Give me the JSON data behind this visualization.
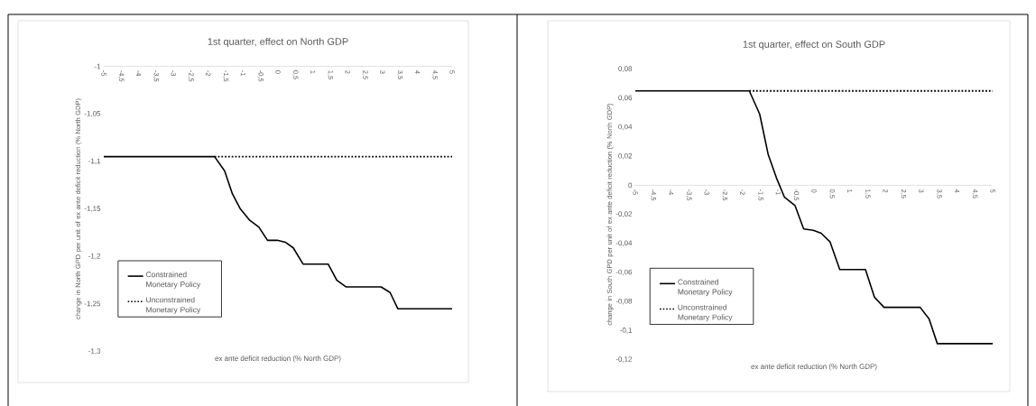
{
  "chart_data": [
    {
      "type": "line",
      "title": "1st quarter, effect on North GDP",
      "xlabel": "ex ante deficit reduction  (% North  GDP)",
      "ylabel": "change in North GPD per unit of ex ante deficit reduction (% North GDP)",
      "legend": "bottom left",
      "xlim": [
        -5,
        5
      ],
      "xticks": [
        -5,
        {
          "value": -4.5,
          "label": "-4,5"
        },
        -4,
        {
          "value": -3.5,
          "label": "-3,5"
        },
        -3,
        {
          "value": -2.5,
          "label": "-2,5"
        },
        -2,
        {
          "value": -1.5,
          "label": "-1,5"
        },
        -1,
        {
          "value": -0.5,
          "label": "-0,5"
        },
        0,
        {
          "value": 0.5,
          "label": "0,5"
        },
        1,
        {
          "value": 1.5,
          "label": "1,5"
        },
        2,
        {
          "value": 2.5,
          "label": "2,5"
        },
        3,
        {
          "value": 3.5,
          "label": "3,5"
        },
        4,
        {
          "value": 4.5,
          "label": "4,5"
        },
        5
      ],
      "ylim": [
        -1.3,
        -1
      ],
      "yticks": [
        -1,
        {
          "value": -1.05,
          "label": "-1,05"
        },
        {
          "value": -1.1,
          "label": "-1,1"
        },
        {
          "value": -1.15,
          "label": "-1,15"
        },
        {
          "value": -1.2,
          "label": "-1,2"
        },
        {
          "value": -1.25,
          "label": "-1,25"
        },
        {
          "value": -1.3,
          "label": "-1,3"
        }
      ],
      "series": [
        {
          "name": "Constrained Monetary Policy",
          "color": "#000000",
          "line_style": "solid",
          "x": [
            -5,
            -1.82,
            -1.53,
            -1.31,
            -1.08,
            -0.81,
            -0.55,
            -0.3,
            -0.02,
            0.21,
            0.44,
            0.72,
            1.44,
            1.69,
            1.95,
            2.96,
            3.22,
            3.44,
            5
          ],
          "values": [
            -1.095,
            -1.095,
            -1.11,
            -1.134,
            -1.15,
            -1.162,
            -1.169,
            -1.183,
            -1.183,
            -1.185,
            -1.191,
            -1.208,
            -1.208,
            -1.225,
            -1.232,
            -1.232,
            -1.238,
            -1.255,
            -1.255
          ]
        },
        {
          "name": "Unconstrained Monetary Policy",
          "color": "#000000",
          "line_style": "dotted",
          "x": [
            -1.82,
            5
          ],
          "values": [
            -1.095,
            -1.095
          ]
        }
      ]
    },
    {
      "type": "line",
      "title": "1st quarter, effect on South GDP",
      "xlabel": "ex ante deficit reduction  (% North  GDP)",
      "ylabel": "change in South GPD per unit of ex ante deficit reduction (% North GDP)",
      "legend": "bottom left",
      "xlim": [
        -5,
        5
      ],
      "xticks": [
        -5,
        {
          "value": -4.5,
          "label": "-4,5"
        },
        -4,
        {
          "value": -3.5,
          "label": "-3,5"
        },
        -3,
        {
          "value": -2.5,
          "label": "-2,5"
        },
        -2,
        {
          "value": -1.5,
          "label": "-1,5"
        },
        -1,
        {
          "value": -0.5,
          "label": "-0,5"
        },
        0,
        {
          "value": 0.5,
          "label": "0,5"
        },
        1,
        {
          "value": 1.5,
          "label": "1,5"
        },
        2,
        {
          "value": 2.5,
          "label": "2,5"
        },
        3,
        {
          "value": 3.5,
          "label": "3,5"
        },
        4,
        {
          "value": 4.5,
          "label": "4,5"
        },
        5
      ],
      "ylim": [
        -0.12,
        0.08
      ],
      "yticks": [
        {
          "value": -0.12,
          "label": "-0,12"
        },
        {
          "value": -0.1,
          "label": "-0,1"
        },
        {
          "value": -0.08,
          "label": "-0,08"
        },
        {
          "value": -0.06,
          "label": "-0,06"
        },
        {
          "value": -0.04,
          "label": "-0,04"
        },
        {
          "value": -0.02,
          "label": "-0,02"
        },
        0,
        {
          "value": 0.02,
          "label": "0,02"
        },
        {
          "value": 0.04,
          "label": "0,04"
        },
        {
          "value": 0.06,
          "label": "0,06"
        },
        {
          "value": 0.08,
          "label": "0,08"
        }
      ],
      "series": [
        {
          "name": "Constrained Monetary Policy",
          "color": "#000000",
          "line_style": "solid",
          "x": [
            -5,
            -1.81,
            -1.52,
            -1.28,
            -1.05,
            -0.83,
            -0.53,
            -0.29,
            -0.02,
            0.2,
            0.45,
            0.72,
            1.44,
            1.69,
            1.96,
            2.97,
            3.22,
            3.45,
            5
          ],
          "values": [
            0.065,
            0.065,
            0.049,
            0.021,
            0.005,
            -0.008,
            -0.014,
            -0.03,
            -0.031,
            -0.033,
            -0.039,
            -0.058,
            -0.058,
            -0.077,
            -0.084,
            -0.084,
            -0.092,
            -0.109,
            -0.109
          ]
        },
        {
          "name": "Unconstrained Monetary Policy",
          "color": "#000000",
          "line_style": "dotted",
          "x": [
            -1.81,
            5
          ],
          "values": [
            0.065,
            0.065
          ]
        }
      ]
    }
  ]
}
